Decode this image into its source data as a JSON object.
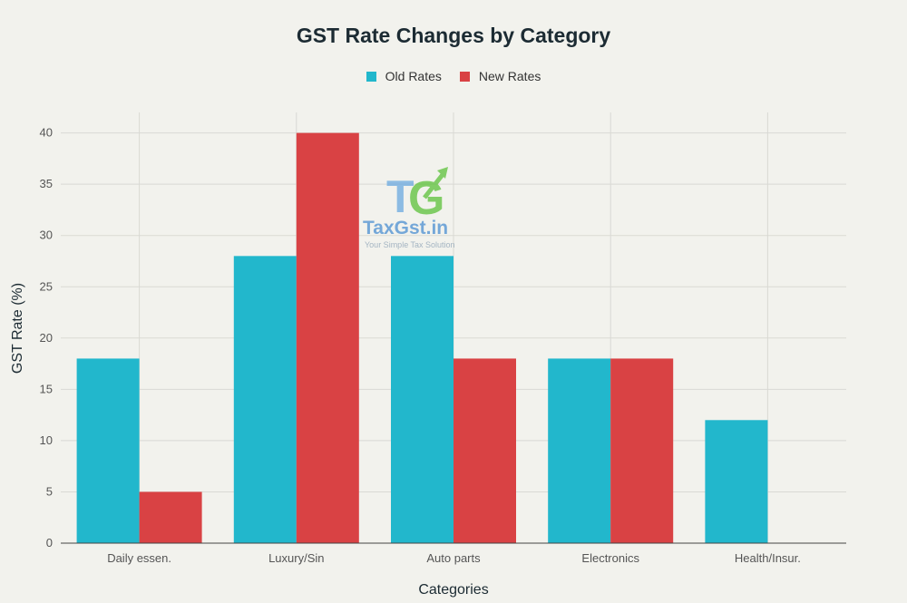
{
  "chart_data": {
    "type": "bar",
    "title": "GST Rate Changes by Category",
    "xlabel": "Categories",
    "ylabel": "GST Rate (%)",
    "categories": [
      "Daily essen.",
      "Luxury/Sin",
      "Auto parts",
      "Electronics",
      "Health/Insur."
    ],
    "series": [
      {
        "name": "Old Rates",
        "values": [
          18,
          28,
          28,
          18,
          12
        ],
        "color": "#22b7cc"
      },
      {
        "name": "New Rates",
        "values": [
          5,
          40,
          18,
          18,
          0
        ],
        "color": "#d94244"
      }
    ],
    "ylim": [
      0,
      42
    ],
    "yticks": [
      0,
      5,
      10,
      15,
      20,
      25,
      30,
      35,
      40
    ],
    "grid": true,
    "legend_position": "top-center"
  },
  "watermark": {
    "brand": "TaxGst.in",
    "tagline": "Your Simple Tax Solution",
    "colors": {
      "blue": "#6aa9e0",
      "green": "#5cc13a"
    }
  }
}
